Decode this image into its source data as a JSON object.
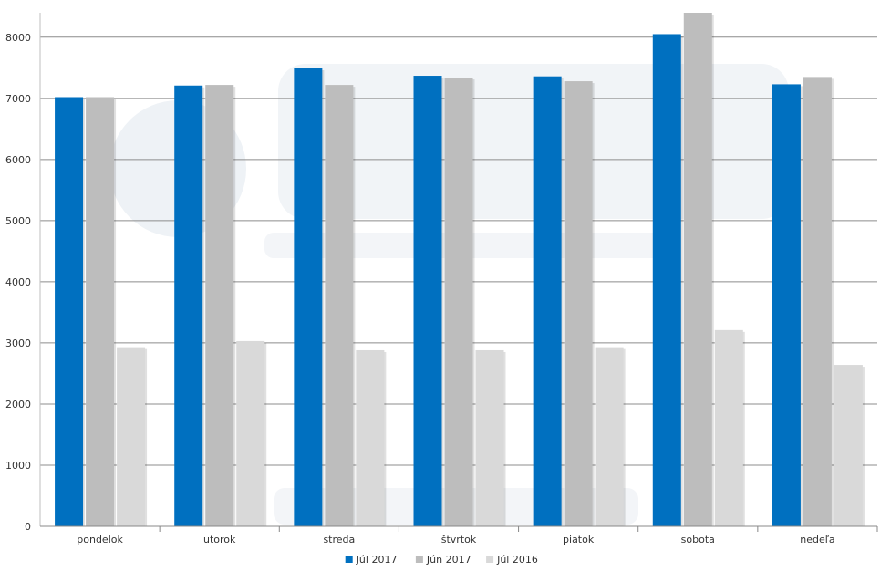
{
  "chart_data": {
    "type": "bar",
    "categories": [
      "pondelok",
      "utorok",
      "streda",
      "štvrtok",
      "piatok",
      "sobota",
      "nedeľa"
    ],
    "series": [
      {
        "name": "Júl 2017",
        "color": "#0070c0",
        "values": [
          7020,
          7210,
          7490,
          7370,
          7360,
          8050,
          7230
        ]
      },
      {
        "name": "Jún 2017",
        "color": "#bdbdbd",
        "values": [
          7020,
          7220,
          7220,
          7340,
          7280,
          8400,
          7350
        ]
      },
      {
        "name": "Júl 2016",
        "color": "#d9d9d9",
        "values": [
          2930,
          3030,
          2880,
          2880,
          2930,
          3210,
          2640
        ]
      }
    ],
    "yticks": [
      "0",
      "1000",
      "2000",
      "3000",
      "4000",
      "5000",
      "6000",
      "7000",
      "8000"
    ],
    "ylim": [
      0,
      8400
    ],
    "grid": true,
    "legend_position": "bottom-center",
    "title": "",
    "xlabel": "",
    "ylabel": ""
  }
}
